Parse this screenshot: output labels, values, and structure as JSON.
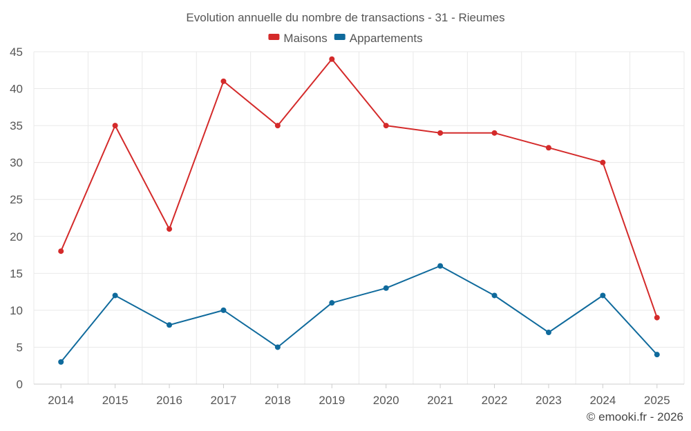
{
  "chart_data": {
    "type": "line",
    "title": "Evolution annuelle du nombre de transactions - 31 - Rieumes",
    "xlabel": "",
    "ylabel": "",
    "categories": [
      "2014",
      "2015",
      "2016",
      "2017",
      "2018",
      "2019",
      "2020",
      "2021",
      "2022",
      "2023",
      "2024",
      "2025"
    ],
    "series": [
      {
        "name": "Maisons",
        "color": "#d42a2a",
        "values": [
          18,
          35,
          21,
          41,
          35,
          44,
          35,
          34,
          34,
          32,
          30,
          9
        ]
      },
      {
        "name": "Appartements",
        "color": "#0f6a9c",
        "values": [
          3,
          12,
          8,
          10,
          5,
          11,
          13,
          16,
          12,
          7,
          12,
          4
        ]
      }
    ],
    "ylim": [
      0,
      45
    ],
    "yticks": [
      0,
      5,
      10,
      15,
      20,
      25,
      30,
      35,
      40,
      45
    ],
    "grid": true,
    "legend_position": "top-center"
  },
  "credit": "© emooki.fr - 2026"
}
